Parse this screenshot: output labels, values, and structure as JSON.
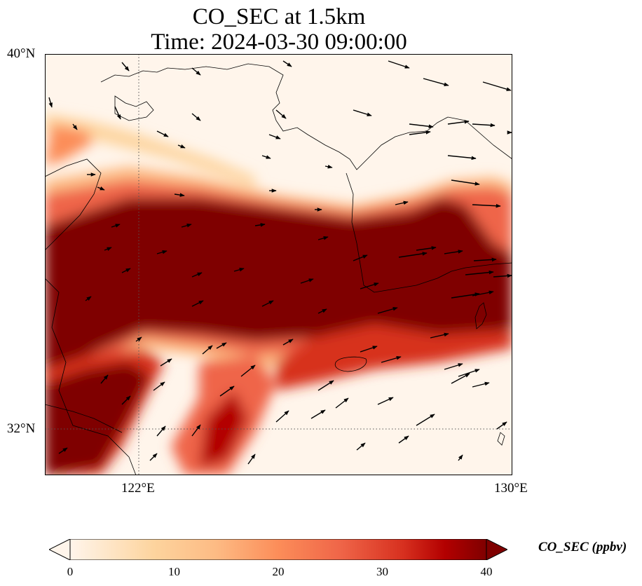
{
  "title": {
    "line1": "CO_SEC at 1.5km",
    "line2": "Time: 2024-03-30 09:00:00"
  },
  "map": {
    "variable": "CO_SEC",
    "level": "1.5km",
    "lon_range": [
      119.6,
      130
    ],
    "lat_range": [
      31.2,
      40
    ],
    "lat_ticks": [
      "40°N",
      "32°N"
    ],
    "lon_ticks": [
      "122°E",
      "130°E"
    ],
    "gridlines": {
      "lon": 122,
      "lat": 32,
      "style": "dotted"
    },
    "overlays": [
      "coastlines",
      "wind-vectors"
    ]
  },
  "colorbar": {
    "label": "CO_SEC (ppbv)",
    "ticks": [
      "0",
      "10",
      "20",
      "30",
      "40"
    ],
    "range": [
      0,
      40
    ],
    "extend": "both",
    "colormap": [
      "#fff5eb",
      "#fdd49e",
      "#fdbb84",
      "#fc8d59",
      "#ef6548",
      "#d7301f",
      "#b30000",
      "#7f0000"
    ]
  }
}
